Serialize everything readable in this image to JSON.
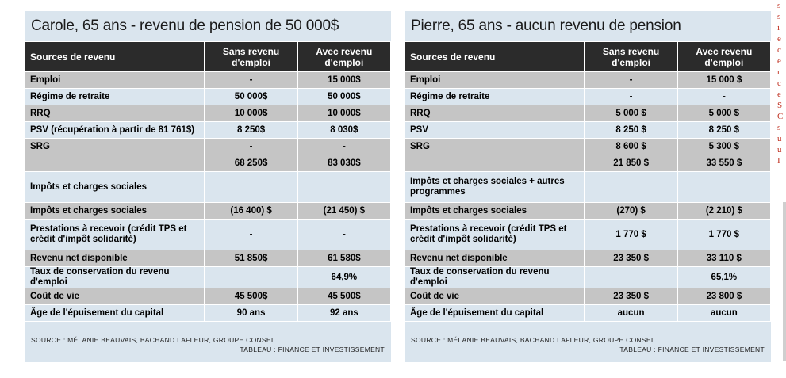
{
  "left": {
    "title": "Carole, 65 ans - revenu de pension de 50 000$",
    "headers": [
      "Sources de revenu",
      "Sans revenu d'emploi",
      "Avec revenu d'emploi"
    ],
    "rows": [
      {
        "label": "Emploi",
        "a": "-",
        "b": "15 000$",
        "gray": true
      },
      {
        "label": "Régime de retraite",
        "a": "50 000$",
        "b": "50 000$",
        "gray": false
      },
      {
        "label": "RRQ",
        "a": "10 000$",
        "b": "10 000$",
        "gray": true
      },
      {
        "label": "PSV (récupération à partir de 81 761$)",
        "a": "8 250$",
        "b": "8 030$",
        "gray": false
      },
      {
        "label": "SRG",
        "a": "-",
        "b": "-",
        "gray": true
      },
      {
        "label": "",
        "a": "68 250$",
        "b": "83 030$",
        "gray": true
      },
      {
        "label": "Impôts et charges sociales",
        "a": "",
        "b": "",
        "gray": false,
        "tall": true
      },
      {
        "label": "Impôts et charges sociales",
        "a": "(16 400) $",
        "b": "(21 450) $",
        "gray": true
      },
      {
        "label": "Prestations à recevoir (crédit TPS et crédit d'impôt solidarité)",
        "a": "-",
        "b": "-",
        "gray": false,
        "tall": true
      },
      {
        "label": "Revenu net disponible",
        "a": "51 850$",
        "b": "61 580$",
        "gray": true
      },
      {
        "label": "Taux de conservation du revenu d'emploi",
        "a": "",
        "b": "64,9%",
        "gray": false
      },
      {
        "label": "Coût de vie",
        "a": "45 500$",
        "b": "45 500$",
        "gray": true
      },
      {
        "label": "Âge de l'épuisement du capital",
        "a": "90 ans",
        "b": "92 ans",
        "gray": false
      }
    ],
    "source1": "SOURCE : MÉLANIE BEAUVAIS, BACHAND LAFLEUR, GROUPE CONSEIL.",
    "source2": "TABLEAU : FINANCE ET INVESTISSEMENT"
  },
  "right": {
    "title": "Pierre, 65 ans - aucun revenu de pension",
    "headers": [
      "Sources de revenu",
      "Sans revenu d'emploi",
      "Avec revenu d'emploi"
    ],
    "rows": [
      {
        "label": "Emploi",
        "a": "-",
        "b": "15 000 $",
        "gray": true
      },
      {
        "label": "Régime de retraite",
        "a": "-",
        "b": "-",
        "gray": false
      },
      {
        "label": "RRQ",
        "a": "5 000 $",
        "b": "5 000 $",
        "gray": true
      },
      {
        "label": "PSV",
        "a": "8 250 $",
        "b": "8 250 $",
        "gray": false
      },
      {
        "label": "SRG",
        "a": "8 600 $",
        "b": "5 300 $",
        "gray": true
      },
      {
        "label": "",
        "a": "21 850 $",
        "b": "33 550 $",
        "gray": true
      },
      {
        "label": "Impôts et charges sociales + autres programmes",
        "a": "",
        "b": "",
        "gray": false,
        "tall": true
      },
      {
        "label": "Impôts et charges sociales",
        "a": "(270) $",
        "b": "(2 210) $",
        "gray": true
      },
      {
        "label": "Prestations à recevoir (crédit TPS et crédit d'impôt solidarité)",
        "a": "1 770 $",
        "b": "1 770 $",
        "gray": false,
        "tall": true
      },
      {
        "label": "Revenu net disponible",
        "a": "23 350 $",
        "b": "33 110 $",
        "gray": true
      },
      {
        "label": "Taux de conservation du revenu d'emploi",
        "a": "",
        "b": "65,1%",
        "gray": false
      },
      {
        "label": "Coût de vie",
        "a": "23 350 $",
        "b": "23 800 $",
        "gray": true
      },
      {
        "label": "Âge de l'épuisement du capital",
        "a": "aucun",
        "b": "aucun",
        "gray": false
      }
    ],
    "source1": "SOURCE : MÉLANIE BEAUVAIS, BACHAND LAFLEUR, GROUPE CONSEIL.",
    "source2": "TABLEAU : FINANCE ET INVESTISSEMENT"
  },
  "edge_text": [
    "s",
    "s",
    "i",
    "e",
    "c",
    "e",
    "r",
    "c",
    "e",
    "S",
    "C",
    "s",
    "u",
    "u",
    "I"
  ]
}
